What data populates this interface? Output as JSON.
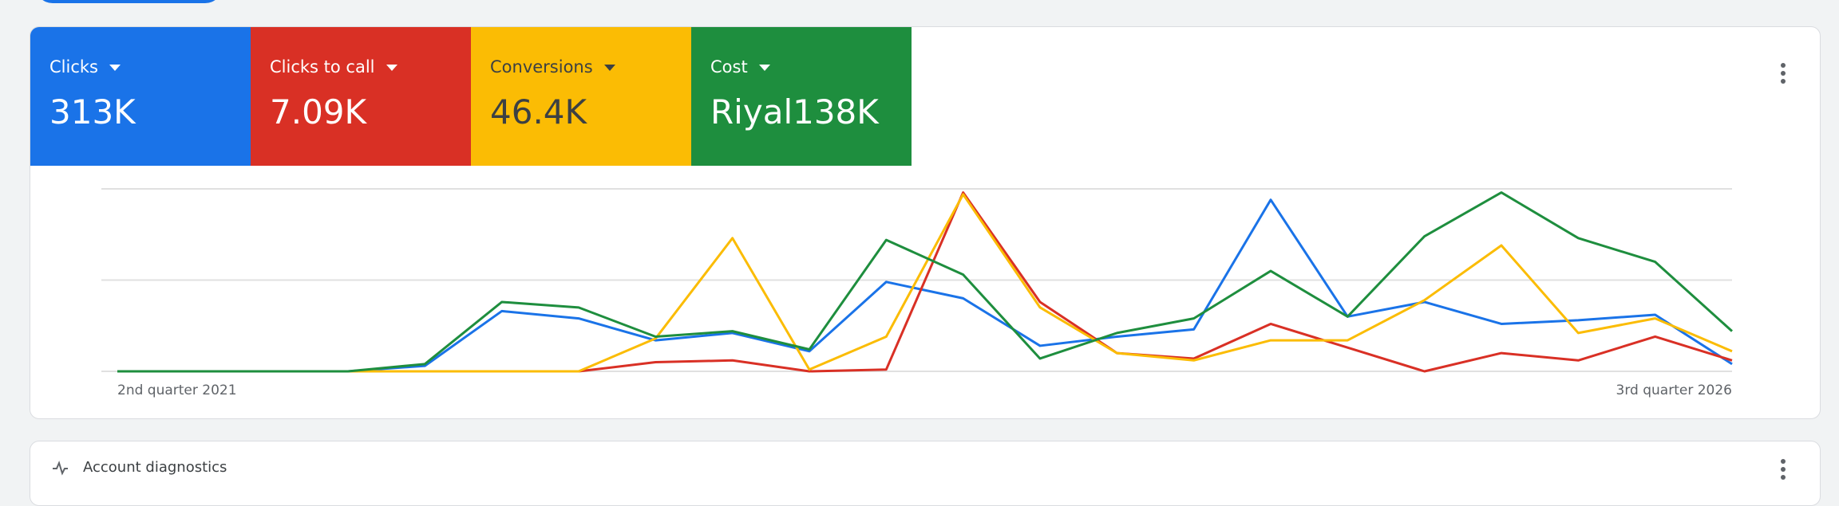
{
  "metrics": [
    {
      "label": "Clicks",
      "value": "313K",
      "color": "#1a73e8"
    },
    {
      "label": "Clicks to call",
      "value": "7.09K",
      "color": "#d93025"
    },
    {
      "label": "Conversions",
      "value": "46.4K",
      "color": "#fbbc04"
    },
    {
      "label": "Cost",
      "value": "Riyal138K",
      "color": "#1e8e3e"
    }
  ],
  "chart_data": {
    "type": "line",
    "categories": [
      "2nd quarter 2021",
      null,
      null,
      null,
      null,
      null,
      null,
      null,
      null,
      null,
      null,
      null,
      null,
      null,
      null,
      null,
      null,
      null,
      null,
      null,
      null,
      "3rd quarter 2026"
    ],
    "ylim": [
      0,
      100
    ],
    "ygrid": [
      0,
      50,
      100
    ],
    "series": [
      {
        "color": "#1a73e8",
        "values": [
          0,
          0,
          0,
          0,
          3,
          33,
          29,
          17,
          21,
          11,
          49,
          40,
          14,
          19,
          23,
          94,
          30,
          38,
          26,
          28,
          31,
          4
        ]
      },
      {
        "color": "#d93025",
        "values": [
          0,
          0,
          0,
          0,
          0,
          0,
          0,
          5,
          6,
          0,
          1,
          98,
          38,
          10,
          7,
          26,
          13,
          0,
          10,
          6,
          19,
          6
        ]
      },
      {
        "color": "#fbbc04",
        "values": [
          0,
          0,
          0,
          0,
          0,
          0,
          0,
          18,
          73,
          1,
          19,
          97,
          35,
          10,
          6,
          17,
          17,
          39,
          69,
          21,
          29,
          11
        ]
      },
      {
        "color": "#1e8e3e",
        "values": [
          0,
          0,
          0,
          0,
          4,
          38,
          35,
          19,
          22,
          12,
          72,
          53,
          7,
          21,
          29,
          55,
          30,
          74,
          98,
          73,
          60,
          22
        ]
      }
    ]
  },
  "diagnostics": {
    "title": "Account diagnostics"
  }
}
